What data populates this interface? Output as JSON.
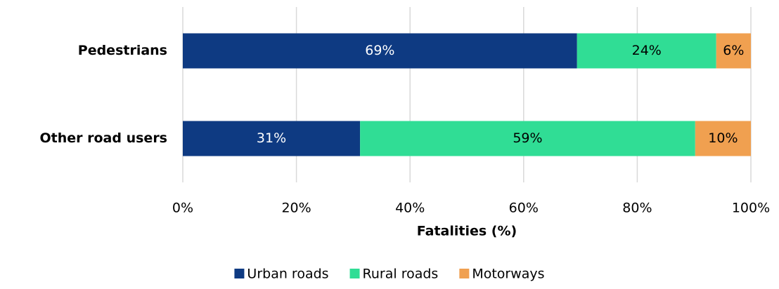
{
  "chart_data": {
    "type": "stacked-bar-horizontal",
    "x_label": "Fatalities (%)",
    "categories": [
      "Pedestrians",
      "Other road users"
    ],
    "series": [
      {
        "name": "Urban roads",
        "color": "#0e3a82",
        "values": [
          69.4,
          31.2
        ],
        "value_labels": [
          "69%",
          "31%"
        ]
      },
      {
        "name": "Rural roads",
        "color": "#30dd95",
        "values": [
          24.5,
          59.0
        ],
        "value_labels": [
          "24%",
          "59%"
        ]
      },
      {
        "name": "Motorways",
        "color": "#f0a050",
        "values": [
          6.1,
          9.8
        ],
        "value_labels": [
          "6%",
          "10%"
        ]
      }
    ],
    "xlim": [
      0,
      100
    ],
    "xticks": [
      {
        "value": 0,
        "label": "0%"
      },
      {
        "value": 20,
        "label": "20%"
      },
      {
        "value": 40,
        "label": "40%"
      },
      {
        "value": 60,
        "label": "60%"
      },
      {
        "value": 80,
        "label": "80%"
      },
      {
        "value": 100,
        "label": "100%"
      }
    ],
    "grid": true,
    "legend": "bottom"
  }
}
